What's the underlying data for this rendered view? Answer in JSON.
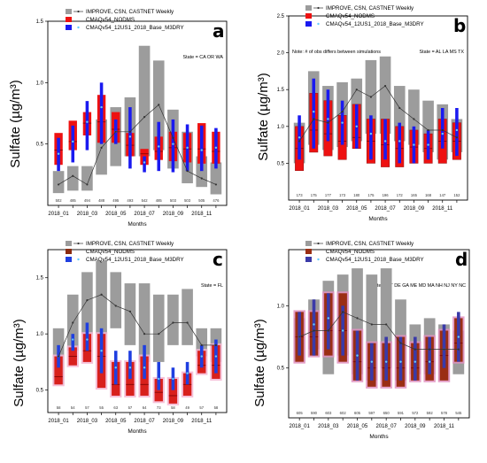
{
  "figure": {
    "colors": {
      "obs_box": "#9c9c9c",
      "base_box": "#ee1111",
      "sens_box": "#1a1af0",
      "obs_median_line": "#333333",
      "sens_median_point": "#66ccff",
      "panel_b_box_outline": "#a01818",
      "panel_c_shadow": "#f4b6d2",
      "panel_c_base_box": "#d8201c",
      "panel_c_base_marker": "#8a2a10",
      "panel_c_sens_box": "#1f3fe0",
      "panel_d_base_box": "#9a2e14",
      "panel_d_sens_box": "#3a3aa8",
      "panel_d_shadow": "#e090c0"
    }
  },
  "chart_data": [
    {
      "type": "box",
      "panel": "a",
      "xlabel": "Months",
      "ylabel": "Sulfate (µg/m³)",
      "ylim": [
        0,
        1.5
      ],
      "yticks": [
        "0.5",
        "1.0",
        "1.5"
      ],
      "ytick_values": [
        0.5,
        1.0,
        1.5
      ],
      "categories": [
        "2018_01",
        "2018_02",
        "2018_03",
        "2018_04",
        "2018_05",
        "2018_06",
        "2018_07",
        "2018_08",
        "2018_09",
        "2018_10",
        "2018_11",
        "2018_12"
      ],
      "xtick_labels": [
        "2018_01",
        "",
        "2018_03",
        "",
        "2018_05",
        "",
        "2018_07",
        "",
        "2018_09",
        "",
        "2018_11",
        ""
      ],
      "legend": [
        "IMPROVE, CSN, CASTNET Weekly",
        "CMAQv54_NODMS",
        "CMAQv54_12US1_2018_Base_M3DRY"
      ],
      "state_note": "State = CA OR WA",
      "note": "",
      "counts": [
        "502",
        "485",
        "494",
        "488",
        "495",
        "493",
        "542",
        "485",
        "503",
        "503",
        "505",
        "476"
      ],
      "obs_q1": [
        0.1,
        0.12,
        0.12,
        0.25,
        0.32,
        0.4,
        0.4,
        0.45,
        0.3,
        0.18,
        0.15,
        0.09
      ],
      "obs_q3": [
        0.28,
        0.32,
        0.32,
        0.7,
        0.8,
        0.88,
        1.3,
        1.18,
        0.78,
        0.6,
        0.4,
        0.35
      ],
      "obs_median": [
        0.17,
        0.24,
        0.17,
        0.47,
        0.6,
        0.6,
        0.72,
        0.82,
        0.55,
        0.28,
        0.22,
        0.17
      ],
      "base_q1": [
        0.33,
        0.45,
        0.57,
        0.51,
        0.51,
        0.4,
        0.33,
        0.37,
        0.36,
        0.35,
        0.34,
        0.34
      ],
      "base_q3": [
        0.59,
        0.69,
        0.76,
        0.9,
        0.76,
        0.59,
        0.46,
        0.56,
        0.6,
        0.59,
        0.67,
        0.6
      ],
      "base_median": [
        0.45,
        0.52,
        0.67,
        0.68,
        0.62,
        0.49,
        0.42,
        0.44,
        0.47,
        0.46,
        0.46,
        0.44
      ],
      "sens_q1": [
        0.28,
        0.35,
        0.45,
        0.5,
        0.5,
        0.3,
        0.27,
        0.28,
        0.27,
        0.28,
        0.28,
        0.3
      ],
      "sens_q3": [
        0.55,
        0.65,
        0.85,
        1.0,
        0.7,
        0.8,
        0.4,
        0.68,
        0.7,
        0.66,
        0.65,
        0.63
      ],
      "sens_median": [
        0.42,
        0.52,
        0.68,
        0.8,
        0.6,
        0.56,
        0.35,
        0.48,
        0.5,
        0.47,
        0.45,
        0.47
      ]
    },
    {
      "type": "box",
      "panel": "b",
      "xlabel": "Months",
      "ylabel": "Sulfate (µg/m³)",
      "ylim": [
        0,
        2.5
      ],
      "yticks": [
        "0.5",
        "1.0",
        "1.5",
        "2.0",
        "2.5"
      ],
      "ytick_values": [
        0.5,
        1.0,
        1.5,
        2.0,
        2.5
      ],
      "categories": [
        "2018_01",
        "2018_02",
        "2018_03",
        "2018_04",
        "2018_05",
        "2018_06",
        "2018_07",
        "2018_08",
        "2018_09",
        "2018_10",
        "2018_11",
        "2018_12"
      ],
      "xtick_labels": [
        "2018_01",
        "",
        "2018_03",
        "",
        "2018_05",
        "",
        "2018_07",
        "",
        "2018_09",
        "",
        "2018_11",
        ""
      ],
      "legend": [
        "IMPROVE, CSN, CASTNET Weekly",
        "CMAQv54_NODMS",
        "CMAQv54_12US1_2018_Base_M3DRY"
      ],
      "state_note": "State = AL LA MS TX",
      "note": "Note: # of obs differs between simulations",
      "counts": [
        "173",
        "175",
        "177",
        "173",
        "180",
        "175",
        "196",
        "172",
        "165",
        "168",
        "147",
        "152"
      ],
      "obs_q1": [
        0.5,
        0.75,
        0.68,
        0.72,
        0.8,
        0.9,
        0.9,
        0.8,
        0.75,
        0.65,
        0.55,
        0.65
      ],
      "obs_q3": [
        1.05,
        1.75,
        1.55,
        1.6,
        1.65,
        1.9,
        1.95,
        1.55,
        1.5,
        1.35,
        1.3,
        1.1
      ],
      "obs_median": [
        0.8,
        1.1,
        1.05,
        1.2,
        1.5,
        1.4,
        1.55,
        1.25,
        1.1,
        0.95,
        0.95,
        0.85
      ],
      "base_q1": [
        0.4,
        0.65,
        0.6,
        0.55,
        0.7,
        0.5,
        0.45,
        0.45,
        0.5,
        0.5,
        0.5,
        0.55
      ],
      "base_q3": [
        1.0,
        1.45,
        1.35,
        1.15,
        1.3,
        1.1,
        1.1,
        1.0,
        0.95,
        0.9,
        1.1,
        1.05
      ],
      "base_median": [
        0.7,
        0.95,
        0.9,
        0.8,
        0.85,
        0.8,
        0.75,
        0.7,
        0.72,
        0.7,
        0.8,
        0.8
      ],
      "sens_q1": [
        0.55,
        0.7,
        0.8,
        0.75,
        0.7,
        0.55,
        0.55,
        0.5,
        0.5,
        0.55,
        0.7,
        0.6
      ],
      "sens_q3": [
        1.15,
        1.65,
        1.5,
        1.35,
        1.3,
        1.15,
        1.1,
        1.05,
        1.0,
        0.95,
        1.25,
        1.25
      ],
      "sens_median": [
        0.85,
        1.2,
        1.1,
        1.05,
        1.0,
        0.9,
        0.8,
        0.8,
        0.75,
        0.75,
        0.9,
        0.95
      ]
    },
    {
      "type": "box",
      "panel": "c",
      "xlabel": "Months",
      "ylabel": "Sulfate (µg/m³)",
      "ylim": [
        0.3,
        1.75
      ],
      "yticks": [
        "0.5",
        "1.0",
        "1.5"
      ],
      "ytick_values": [
        0.5,
        1.0,
        1.5
      ],
      "categories": [
        "2018_01",
        "2018_02",
        "2018_03",
        "2018_04",
        "2018_05",
        "2018_06",
        "2018_07",
        "2018_08",
        "2018_09",
        "2018_10",
        "2018_11",
        "2018_12"
      ],
      "xtick_labels": [
        "2018_01",
        "",
        "2018_03",
        "",
        "2018_05",
        "",
        "2018_07",
        "",
        "2018_09",
        "",
        "2018_11",
        ""
      ],
      "legend": [
        "IMPROVE, CSN, CASTNET Weekly",
        "CMAQv54_NODMS",
        "CMAQv54_12US1_2018_Base_M3DRY"
      ],
      "state_note": "State = FL",
      "note": "",
      "counts": [
        "58",
        "54",
        "57",
        "55",
        "63",
        "57",
        "64",
        "73",
        "58",
        "49",
        "57",
        "58"
      ],
      "obs_q1": [
        0.55,
        0.85,
        1.0,
        1.0,
        1.05,
        0.9,
        0.75,
        0.75,
        0.9,
        0.9,
        0.8,
        0.75
      ],
      "obs_q3": [
        1.05,
        1.35,
        1.55,
        1.65,
        1.55,
        1.45,
        1.45,
        1.35,
        1.35,
        1.4,
        1.05,
        1.05
      ],
      "obs_median": [
        0.8,
        1.1,
        1.3,
        1.35,
        1.25,
        1.2,
        1.0,
        1.0,
        1.1,
        1.1,
        0.9,
        0.9
      ],
      "base_q1": [
        0.55,
        0.72,
        0.75,
        0.52,
        0.45,
        0.45,
        0.45,
        0.4,
        0.38,
        0.45,
        0.65,
        0.6
      ],
      "base_q3": [
        0.8,
        0.88,
        1.0,
        1.0,
        0.75,
        0.75,
        0.8,
        0.6,
        0.6,
        0.65,
        0.85,
        0.9
      ],
      "base_median": [
        0.62,
        0.8,
        0.85,
        0.8,
        0.55,
        0.55,
        0.55,
        0.48,
        0.45,
        0.55,
        0.72,
        0.72
      ],
      "sens_q1": [
        0.7,
        0.85,
        0.85,
        0.65,
        0.55,
        0.6,
        0.6,
        0.5,
        0.5,
        0.55,
        0.7,
        0.65
      ],
      "sens_q3": [
        0.9,
        1.0,
        1.1,
        1.05,
        0.85,
        0.85,
        0.9,
        0.75,
        0.7,
        0.75,
        0.9,
        0.95
      ],
      "sens_median": [
        0.8,
        0.95,
        0.95,
        0.85,
        0.7,
        0.7,
        0.7,
        0.6,
        0.6,
        0.65,
        0.8,
        0.8
      ]
    },
    {
      "type": "box",
      "panel": "d",
      "xlabel": "Months",
      "ylabel": "Sulfate (µg/m³)",
      "ylim": [
        0.1,
        1.45
      ],
      "yticks": [
        "0.5",
        "1.0"
      ],
      "ytick_values": [
        0.5,
        1.0
      ],
      "categories": [
        "2018_01",
        "2018_02",
        "2018_03",
        "2018_04",
        "2018_05",
        "2018_06",
        "2018_07",
        "2018_08",
        "2018_09",
        "2018_10",
        "2018_11",
        "2018_12"
      ],
      "xtick_labels": [
        "2018_01",
        "",
        "2018_03",
        "",
        "2018_05",
        "",
        "2018_07",
        "",
        "2018_09",
        "",
        "2018_11",
        ""
      ],
      "legend": [
        "IMPROVE, CSN, CASTNET Weekly",
        "CMAQv54_NODMS",
        "CMAQv54_12US1_2018_Base_M3DRY"
      ],
      "state_note": "State = CT DE GA ME MD MA NH NJ NY NC",
      "note": "",
      "counts": [
        "605",
        "590",
        "603",
        "602",
        "605",
        "597",
        "650",
        "591",
        "572",
        "592",
        "578",
        "545"
      ],
      "obs_q1": [
        0.55,
        0.65,
        0.45,
        0.6,
        0.45,
        0.4,
        0.5,
        0.4,
        0.45,
        0.45,
        0.4,
        0.45
      ],
      "obs_q3": [
        0.9,
        1.05,
        1.2,
        1.25,
        1.3,
        1.25,
        1.3,
        1.05,
        0.85,
        0.9,
        0.85,
        0.8
      ],
      "obs_median": [
        0.75,
        0.8,
        0.8,
        0.95,
        0.9,
        0.85,
        0.85,
        0.7,
        0.65,
        0.65,
        0.65,
        0.65
      ],
      "base_q1": [
        0.55,
        0.6,
        0.6,
        0.55,
        0.4,
        0.35,
        0.35,
        0.35,
        0.4,
        0.4,
        0.4,
        0.55
      ],
      "base_q3": [
        0.95,
        0.95,
        1.1,
        1.1,
        0.8,
        0.7,
        0.7,
        0.75,
        0.7,
        0.75,
        0.8,
        0.9
      ],
      "base_median": [
        0.75,
        0.75,
        0.8,
        0.8,
        0.55,
        0.5,
        0.5,
        0.5,
        0.5,
        0.55,
        0.6,
        0.7
      ],
      "sens_q1": [
        0.6,
        0.6,
        0.65,
        0.6,
        0.4,
        0.4,
        0.4,
        0.4,
        0.4,
        0.45,
        0.5,
        0.55
      ],
      "sens_q3": [
        0.95,
        1.05,
        1.1,
        1.0,
        0.8,
        0.7,
        0.75,
        0.75,
        0.75,
        0.75,
        0.85,
        0.95
      ],
      "sens_median": [
        0.75,
        0.85,
        0.9,
        0.8,
        0.6,
        0.55,
        0.55,
        0.55,
        0.55,
        0.55,
        0.65,
        0.75
      ]
    }
  ]
}
